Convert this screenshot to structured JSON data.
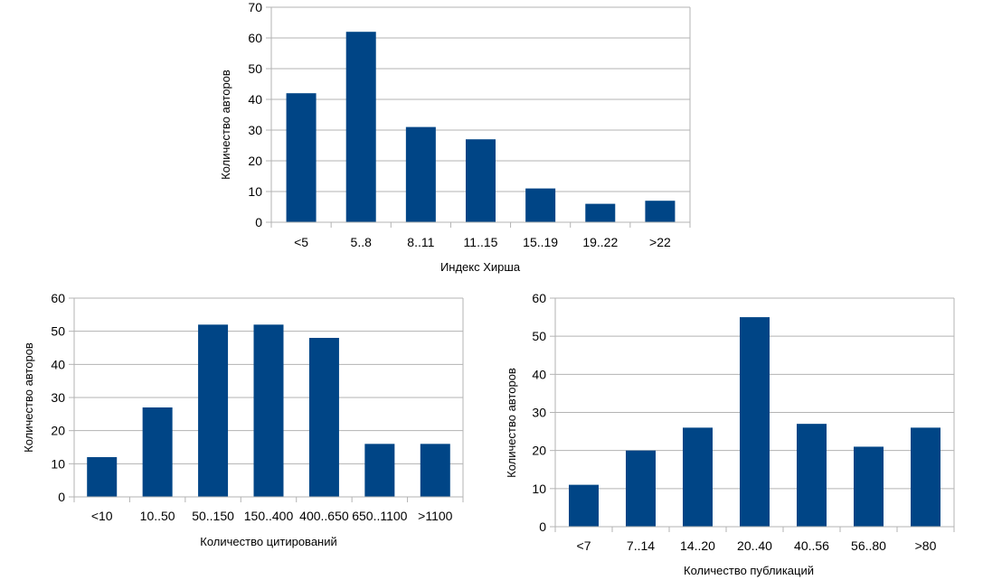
{
  "chart_data": [
    {
      "type": "bar",
      "categories": [
        "<5",
        "5..8",
        "8..11",
        "11..15",
        "15..19",
        "19..22",
        ">22"
      ],
      "values": [
        42,
        62,
        31,
        27,
        11,
        6,
        7
      ],
      "xlabel": "Индекс Хирша",
      "ylabel": "Количество авторов",
      "ylim": [
        0,
        70
      ],
      "yticks": [
        0,
        10,
        20,
        30,
        40,
        50,
        60,
        70
      ],
      "grid": true,
      "color": "#004586"
    },
    {
      "type": "bar",
      "categories": [
        "<10",
        "10..50",
        "50..150",
        "150..400",
        "400..650",
        "650..1100",
        ">1100"
      ],
      "values": [
        12,
        27,
        52,
        52,
        48,
        16,
        16
      ],
      "xlabel": "Количество цитирований",
      "ylabel": "Количество авторов",
      "ylim": [
        0,
        60
      ],
      "yticks": [
        0,
        10,
        20,
        30,
        40,
        50,
        60
      ],
      "grid": true,
      "color": "#004586"
    },
    {
      "type": "bar",
      "categories": [
        "<7",
        "7..14",
        "14..20",
        "20..40",
        "40..56",
        "56..80",
        ">80"
      ],
      "values": [
        11,
        20,
        26,
        55,
        27,
        21,
        26
      ],
      "xlabel": "Количество публикаций",
      "ylabel": "Количество авторов",
      "ylim": [
        0,
        60
      ],
      "yticks": [
        0,
        10,
        20,
        30,
        40,
        50,
        60
      ],
      "grid": true,
      "color": "#004586"
    }
  ]
}
